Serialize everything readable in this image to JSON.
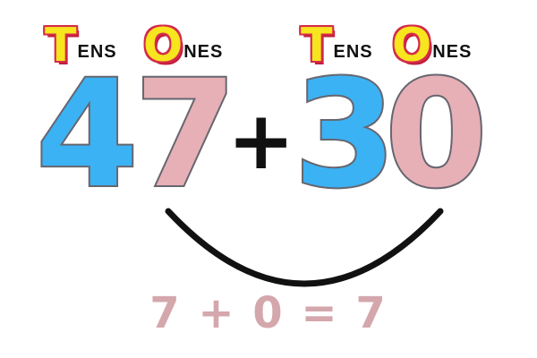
{
  "labels": [
    {
      "initial": "T",
      "rest": "ENS"
    },
    {
      "initial": "O",
      "rest": "NES"
    },
    {
      "initial": "T",
      "rest": "ENS"
    },
    {
      "initial": "O",
      "rest": "NES"
    }
  ],
  "numbers": {
    "first": {
      "tens": "4",
      "ones": "7"
    },
    "operator": "+",
    "second": {
      "tens": "3",
      "ones": "0"
    }
  },
  "ones_equation": "7 + 0 = 7",
  "colors": {
    "tens": "#3bb2f4",
    "ones": "#e7b0b6",
    "label_fill": "#f7e51e",
    "label_outline": "#d42a4a",
    "equation": "#d4a7ad",
    "arc": "#111111"
  }
}
